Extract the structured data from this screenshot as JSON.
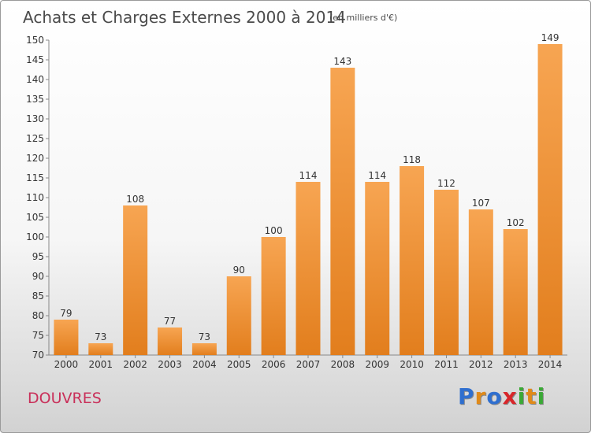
{
  "footer": {
    "commune": "DOUVRES",
    "logo_letters": [
      "P",
      "r",
      "o",
      "x",
      "i",
      "t",
      "i"
    ]
  },
  "colors": {
    "bar_light": "#f7a552",
    "bar_dark": "#e27e1d",
    "axis": "#888888"
  },
  "chart_data": {
    "type": "bar",
    "title": "Achats et Charges Externes 2000 à 2014",
    "subtitle": "(en milliers d'€)",
    "xlabel": "",
    "ylabel": "",
    "categories": [
      "2000",
      "2001",
      "2002",
      "2003",
      "2004",
      "2005",
      "2006",
      "2007",
      "2008",
      "2009",
      "2010",
      "2011",
      "2012",
      "2013",
      "2014"
    ],
    "values": [
      79,
      73,
      108,
      77,
      73,
      90,
      100,
      114,
      143,
      114,
      118,
      112,
      107,
      102,
      149
    ],
    "ylim": [
      70,
      150
    ],
    "yticks": [
      70,
      75,
      80,
      85,
      90,
      95,
      100,
      105,
      110,
      115,
      120,
      125,
      130,
      135,
      140,
      145,
      150
    ],
    "grid": false,
    "data_labels": true
  }
}
